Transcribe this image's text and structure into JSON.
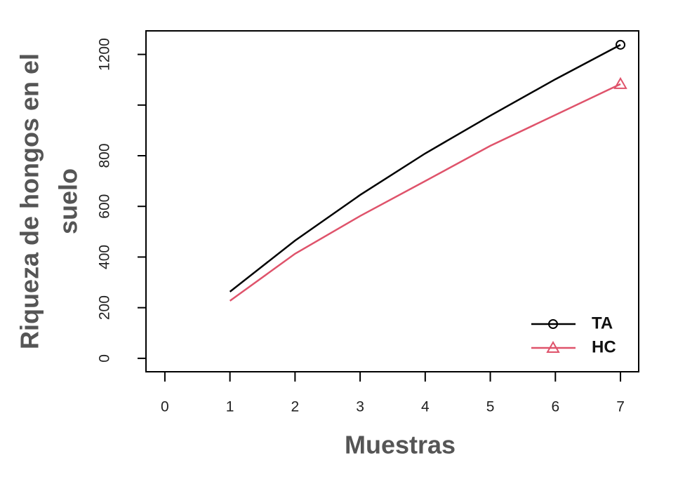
{
  "chart_data": {
    "type": "line",
    "xlabel": "Muestras",
    "ylabel": [
      "Riqueza de hongos en el",
      "suelo"
    ],
    "x": [
      1,
      2,
      3,
      4,
      5,
      6,
      7
    ],
    "series": [
      {
        "name": "TA",
        "color": "#000000",
        "marker": "circle",
        "values": [
          263,
          465,
          645,
          809,
          958,
          1102,
          1238
        ]
      },
      {
        "name": "HC",
        "color": "#df536b",
        "marker": "triangle",
        "values": [
          227,
          413,
          562,
          700,
          839,
          961,
          1083
        ]
      }
    ],
    "xlim": [
      -0.29,
      7.28
    ],
    "xticks": [
      0,
      1,
      2,
      3,
      4,
      5,
      6,
      7
    ],
    "ylim": [
      -53,
      1293
    ],
    "yticks": [
      0,
      200,
      400,
      600,
      800,
      {
        "value": 1000,
        "label": null
      },
      1200
    ],
    "legend": "bottom-right"
  }
}
